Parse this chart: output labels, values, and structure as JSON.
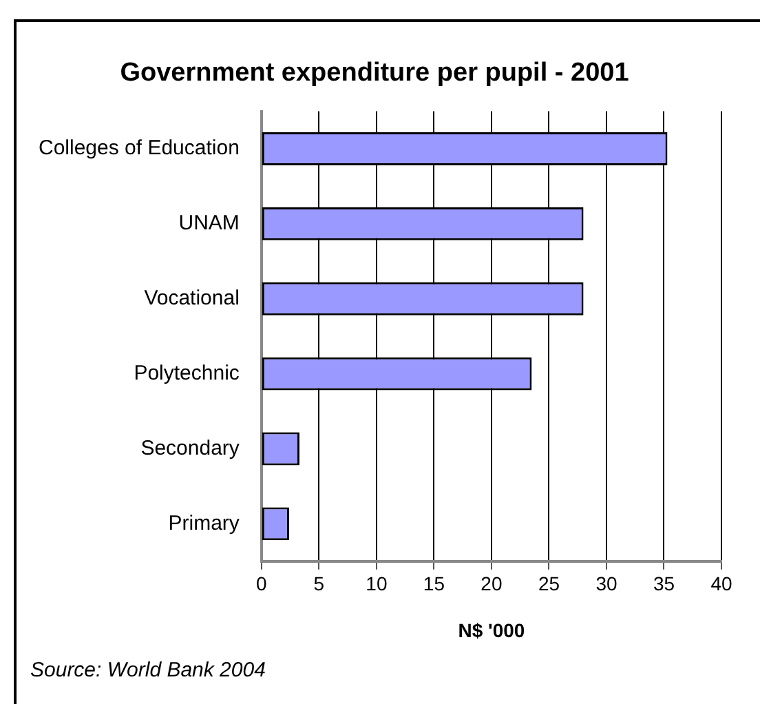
{
  "chart_data": {
    "type": "bar",
    "orientation": "horizontal",
    "title": "Government expenditure per pupil - 2001",
    "xlabel": "N$ '000",
    "annotations": [
      "Source: World Bank 2004"
    ],
    "categories": [
      "Colleges of Education",
      "UNAM",
      "Vocational",
      "Polytechnic",
      "Secondary",
      "Primary"
    ],
    "values": [
      35.3,
      28,
      28,
      23.5,
      3.3,
      2.4
    ],
    "color": "#9999ff",
    "xlim": [
      0,
      40
    ],
    "xticks": [
      0,
      5,
      10,
      15,
      20,
      25,
      30,
      35,
      40
    ],
    "grid": "x",
    "legend": false
  }
}
